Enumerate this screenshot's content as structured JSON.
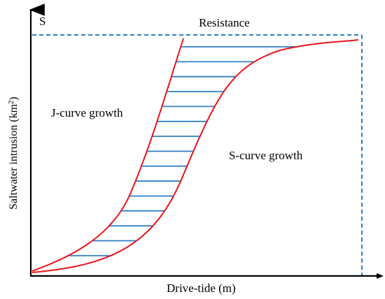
{
  "labels": {
    "corner": "S",
    "resistance": "Resistance",
    "j_curve": "J-curve growth",
    "s_curve": "S-curve growth",
    "x_axis": "Drive-tide (m)",
    "y_axis_main": "Saltwater intrusion (km",
    "y_axis_sup": "2",
    "y_axis_close": ")"
  },
  "colors": {
    "axis": "#000000",
    "curves": "#e8141b",
    "hatch": "#2e7fc4",
    "limit_line": "#2e7fc4",
    "text": "#000000"
  },
  "style": {
    "limit_line": "dashed",
    "hatch_line_count": 15
  }
}
